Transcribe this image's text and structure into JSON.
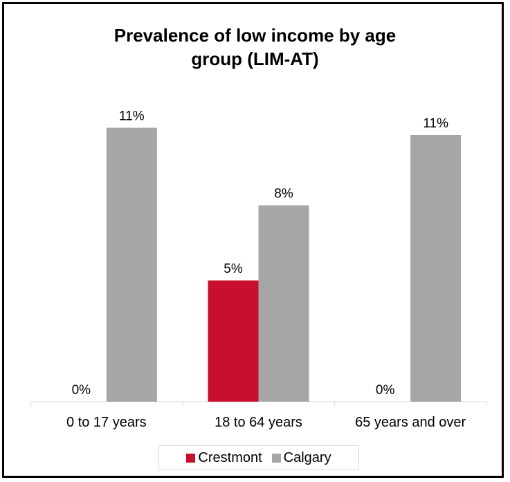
{
  "chart_data": {
    "type": "bar",
    "title_lines": [
      "Prevalence of low income by age",
      "group (LIM-AT)"
    ],
    "categories": [
      "0 to 17 years",
      "18 to 64 years",
      "65 years and over"
    ],
    "series": [
      {
        "name": "Crestmont",
        "color": "#c8102e",
        "values": [
          0,
          5,
          0
        ],
        "labels": [
          "0%",
          "5%",
          "0%"
        ]
      },
      {
        "name": "Calgary",
        "color": "#a6a6a6",
        "values": [
          11.3,
          8.1,
          11
        ],
        "labels": [
          "11%",
          "8%",
          "11%"
        ]
      }
    ],
    "ylim": [
      0,
      12
    ],
    "grid": false,
    "legend_position": "bottom"
  }
}
